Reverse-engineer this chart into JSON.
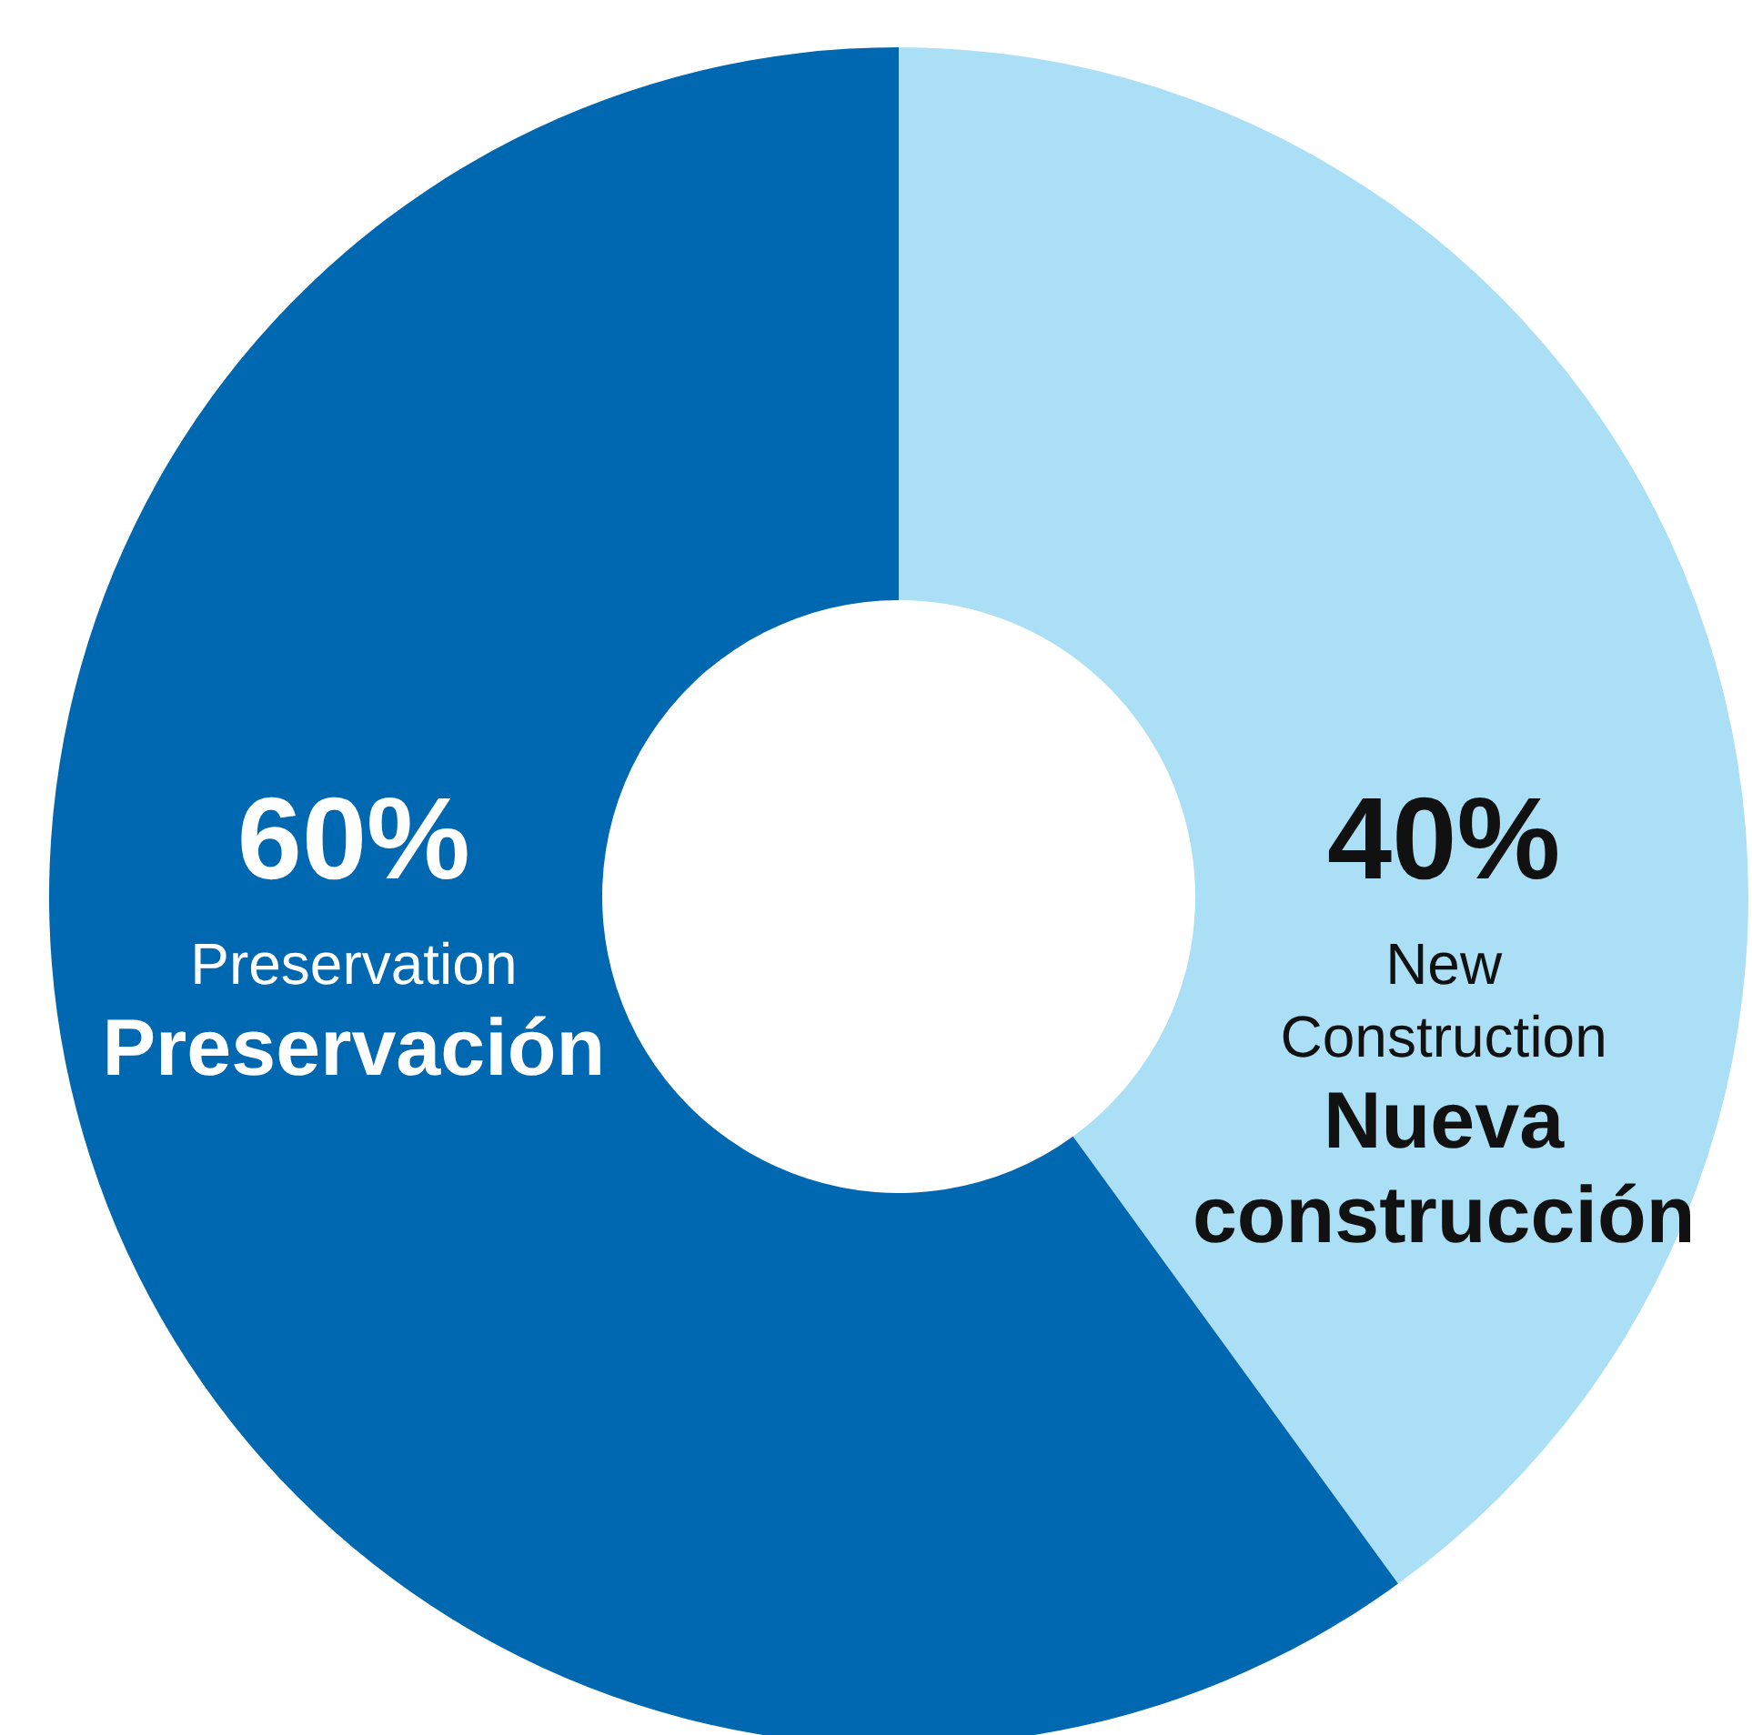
{
  "chart_data": {
    "type": "donut",
    "categories": [
      "New Construction",
      "Preservation"
    ],
    "values": [
      40,
      60
    ],
    "colors": [
      "#aadff5",
      "#0067b1"
    ],
    "value_labels": [
      "40%",
      "60%"
    ],
    "annotations": [
      "Nueva construcción",
      "Preservación"
    ],
    "legend": false
  }
}
